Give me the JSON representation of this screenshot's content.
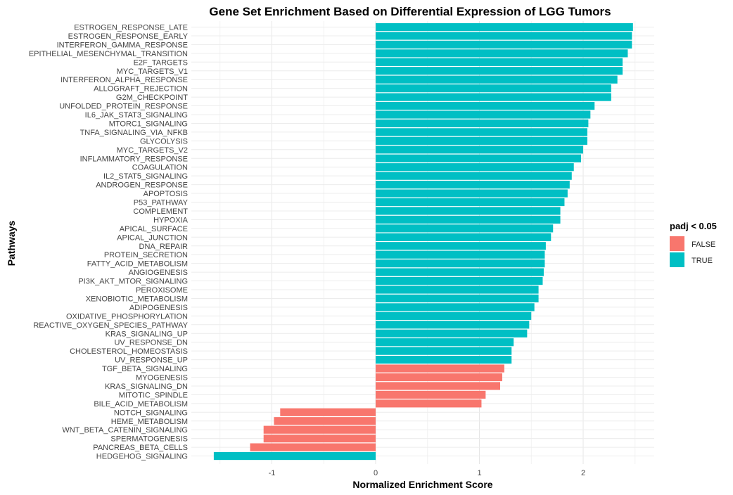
{
  "chart_data": {
    "type": "bar",
    "orientation": "horizontal",
    "title": "Gene Set Enrichment Based on Differential Expression of LGG Tumors",
    "xlabel": "Normalized Enrichment Score",
    "ylabel": "Pathways",
    "xlim": [
      -1.56,
      2.67
    ],
    "xticks": [
      -1,
      0,
      1,
      2
    ],
    "grid": true,
    "legend": {
      "title": "padj < 0.05",
      "position": "right",
      "entries": [
        {
          "label": "FALSE",
          "color": "#F8766D"
        },
        {
          "label": "TRUE",
          "color": "#00BFC4"
        }
      ]
    },
    "colors": {
      "FALSE": "#F8766D",
      "TRUE": "#00BFC4"
    },
    "categories": [
      "ESTROGEN_RESPONSE_LATE",
      "ESTROGEN_RESPONSE_EARLY",
      "INTERFERON_GAMMA_RESPONSE",
      "EPITHELIAL_MESENCHYMAL_TRANSITION",
      "E2F_TARGETS",
      "MYC_TARGETS_V1",
      "INTERFERON_ALPHA_RESPONSE",
      "ALLOGRAFT_REJECTION",
      "G2M_CHECKPOINT",
      "UNFOLDED_PROTEIN_RESPONSE",
      "IL6_JAK_STAT3_SIGNALING",
      "MTORC1_SIGNALING",
      "TNFA_SIGNALING_VIA_NFKB",
      "GLYCOLYSIS",
      "MYC_TARGETS_V2",
      "INFLAMMATORY_RESPONSE",
      "COAGULATION",
      "IL2_STAT5_SIGNALING",
      "ANDROGEN_RESPONSE",
      "APOPTOSIS",
      "P53_PATHWAY",
      "COMPLEMENT",
      "HYPOXIA",
      "APICAL_SURFACE",
      "APICAL_JUNCTION",
      "DNA_REPAIR",
      "PROTEIN_SECRETION",
      "FATTY_ACID_METABOLISM",
      "ANGIOGENESIS",
      "PI3K_AKT_MTOR_SIGNALING",
      "PEROXISOME",
      "XENOBIOTIC_METABOLISM",
      "ADIPOGENESIS",
      "OXIDATIVE_PHOSPHORYLATION",
      "REACTIVE_OXYGEN_SPECIES_PATHWAY",
      "KRAS_SIGNALING_UP",
      "UV_RESPONSE_DN",
      "CHOLESTEROL_HOMEOSTASIS",
      "UV_RESPONSE_UP",
      "TGF_BETA_SIGNALING",
      "MYOGENESIS",
      "KRAS_SIGNALING_DN",
      "MITOTIC_SPINDLE",
      "BILE_ACID_METABOLISM",
      "NOTCH_SIGNALING",
      "HEME_METABOLISM",
      "WNT_BETA_CATENIN_SIGNALING",
      "SPERMATOGENESIS",
      "PANCREAS_BETA_CELLS",
      "HEDGEHOG_SIGNALING"
    ],
    "values": [
      2.48,
      2.47,
      2.47,
      2.43,
      2.38,
      2.38,
      2.33,
      2.27,
      2.27,
      2.11,
      2.07,
      2.05,
      2.04,
      2.04,
      2.0,
      1.98,
      1.91,
      1.89,
      1.87,
      1.85,
      1.82,
      1.78,
      1.78,
      1.71,
      1.69,
      1.64,
      1.63,
      1.63,
      1.62,
      1.61,
      1.57,
      1.57,
      1.53,
      1.5,
      1.48,
      1.46,
      1.33,
      1.31,
      1.31,
      1.24,
      1.22,
      1.2,
      1.06,
      1.02,
      -0.92,
      -0.98,
      -1.08,
      -1.08,
      -1.21,
      -1.56
    ],
    "significant": [
      "TRUE",
      "TRUE",
      "TRUE",
      "TRUE",
      "TRUE",
      "TRUE",
      "TRUE",
      "TRUE",
      "TRUE",
      "TRUE",
      "TRUE",
      "TRUE",
      "TRUE",
      "TRUE",
      "TRUE",
      "TRUE",
      "TRUE",
      "TRUE",
      "TRUE",
      "TRUE",
      "TRUE",
      "TRUE",
      "TRUE",
      "TRUE",
      "TRUE",
      "TRUE",
      "TRUE",
      "TRUE",
      "TRUE",
      "TRUE",
      "TRUE",
      "TRUE",
      "TRUE",
      "TRUE",
      "TRUE",
      "TRUE",
      "TRUE",
      "TRUE",
      "TRUE",
      "FALSE",
      "FALSE",
      "FALSE",
      "FALSE",
      "FALSE",
      "FALSE",
      "FALSE",
      "FALSE",
      "FALSE",
      "FALSE",
      "TRUE"
    ]
  }
}
